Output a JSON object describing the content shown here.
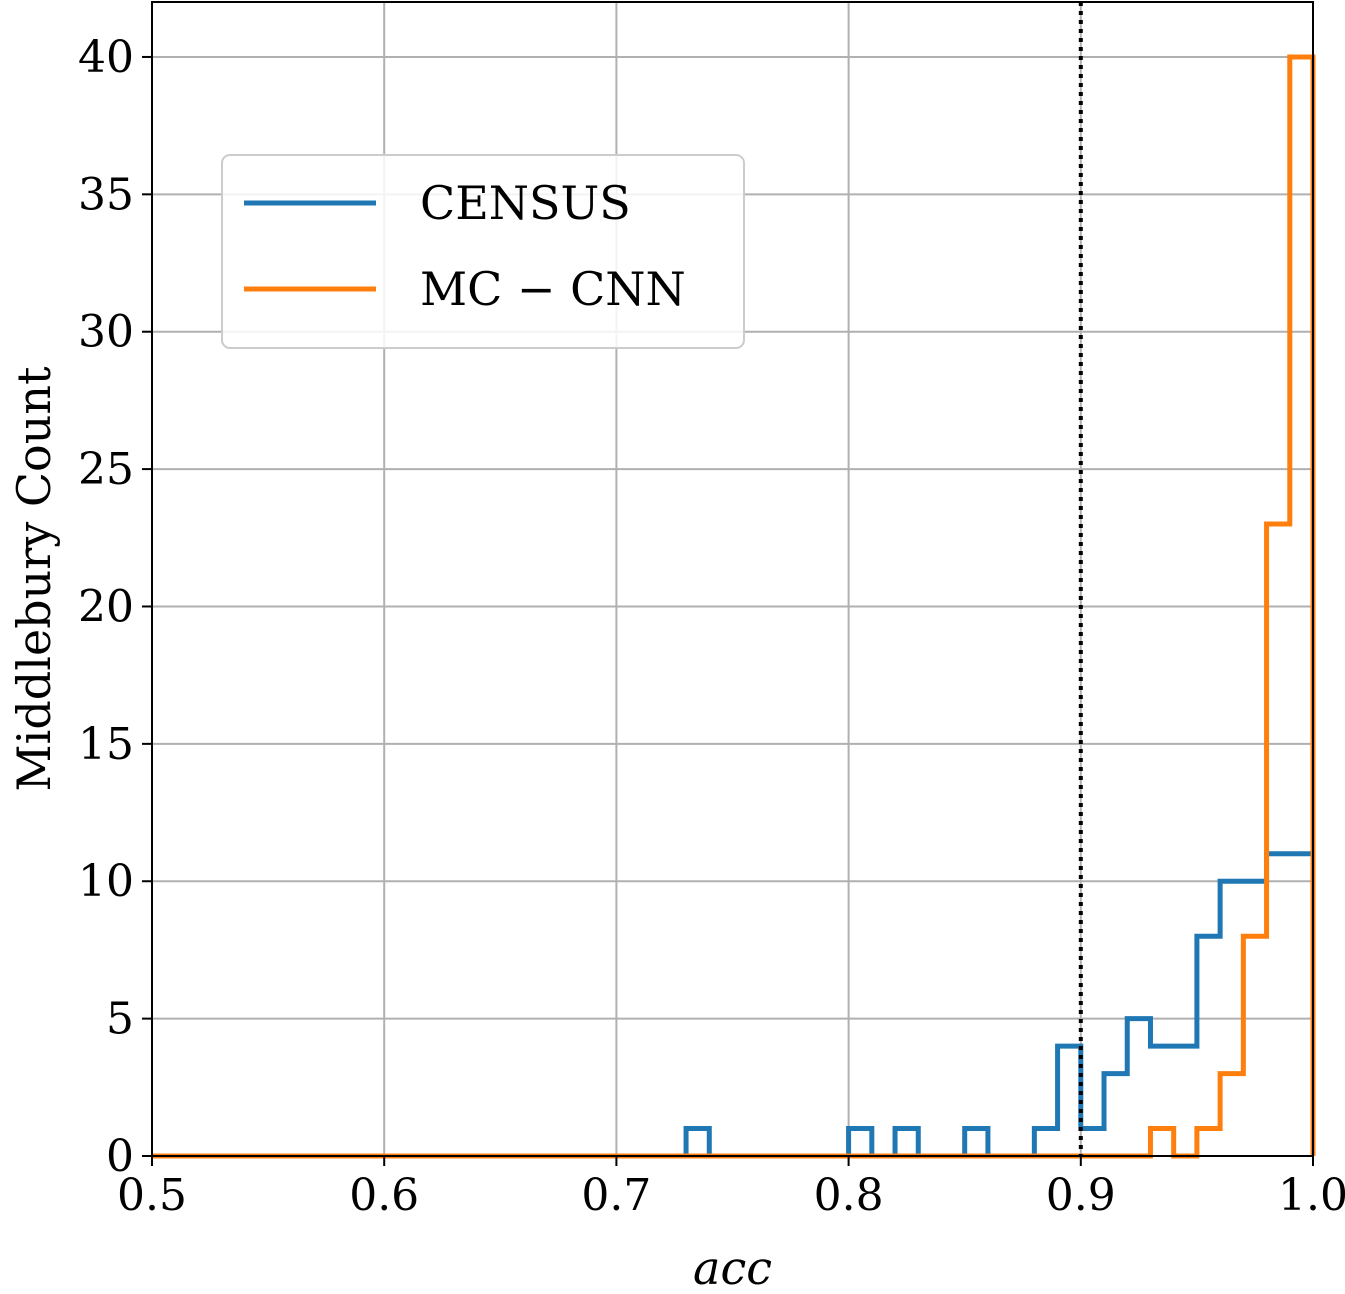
{
  "chart_data": {
    "type": "histogram",
    "title": "",
    "xlabel": "acc",
    "ylabel": "Middlebury Count",
    "xlim": [
      0.5,
      1.0
    ],
    "ylim": [
      0,
      42
    ],
    "xticks": [
      0.5,
      0.6,
      0.7,
      0.8,
      0.9,
      1.0
    ],
    "xtick_labels": [
      "0.5",
      "0.6",
      "0.7",
      "0.8",
      "0.9",
      "1.0"
    ],
    "yticks": [
      0,
      5,
      10,
      15,
      20,
      25,
      30,
      35,
      40
    ],
    "ytick_labels": [
      "0",
      "5",
      "10",
      "15",
      "20",
      "25",
      "30",
      "35",
      "40"
    ],
    "grid": true,
    "legend_position": "upper-left",
    "bin_edges": [
      0.5,
      0.51,
      0.52,
      0.53,
      0.54,
      0.55,
      0.56,
      0.57,
      0.58,
      0.59,
      0.6,
      0.61,
      0.62,
      0.63,
      0.64,
      0.65,
      0.66,
      0.67,
      0.68,
      0.69,
      0.7,
      0.71,
      0.72,
      0.73,
      0.74,
      0.75,
      0.76,
      0.77,
      0.78,
      0.79,
      0.8,
      0.81,
      0.82,
      0.83,
      0.84,
      0.85,
      0.86,
      0.87,
      0.88,
      0.89,
      0.9,
      0.91,
      0.92,
      0.93,
      0.94,
      0.95,
      0.96,
      0.97,
      0.98,
      0.99,
      1.0
    ],
    "series": [
      {
        "name": "CENSUS",
        "color": "#1f77b4",
        "counts": [
          0,
          0,
          0,
          0,
          0,
          0,
          0,
          0,
          0,
          0,
          0,
          0,
          0,
          0,
          0,
          0,
          0,
          0,
          0,
          0,
          0,
          0,
          0,
          1,
          0,
          0,
          0,
          0,
          0,
          0,
          1,
          0,
          1,
          0,
          0,
          1,
          0,
          0,
          1,
          4,
          1,
          3,
          5,
          4,
          4,
          8,
          10,
          10,
          11,
          11
        ]
      },
      {
        "name": "MC − CNN",
        "color": "#ff7f0e",
        "counts": [
          0,
          0,
          0,
          0,
          0,
          0,
          0,
          0,
          0,
          0,
          0,
          0,
          0,
          0,
          0,
          0,
          0,
          0,
          0,
          0,
          0,
          0,
          0,
          0,
          0,
          0,
          0,
          0,
          0,
          0,
          0,
          0,
          0,
          0,
          0,
          0,
          0,
          0,
          0,
          0,
          0,
          0,
          0,
          1,
          0,
          1,
          3,
          8,
          23,
          40
        ]
      }
    ],
    "annotations": [
      {
        "type": "vertical-dotted-line",
        "x": 0.9,
        "color": "#000000"
      }
    ]
  }
}
